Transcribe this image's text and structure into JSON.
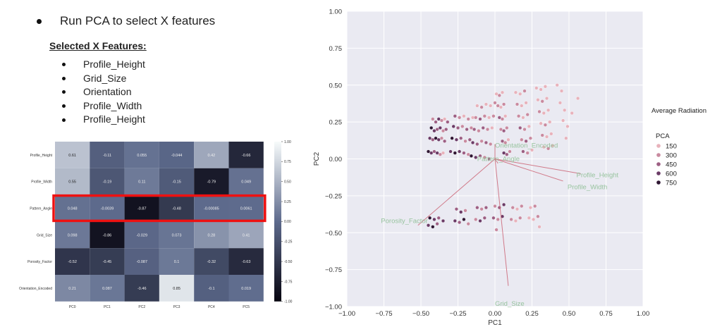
{
  "slide": {
    "main_bullet": "Run PCA to select X features",
    "selected_title": "Selected X Features:",
    "features": [
      "Profile_Height",
      "Grid_Size",
      "Orientation",
      "Profile_Width",
      "Profile_Height"
    ]
  },
  "chart_data": [
    {
      "type": "heatmap",
      "rows": [
        "Profile_Height",
        "Profile_Width",
        "Pattern_Angle",
        "Grid_Size",
        "Porosity_Factor",
        "Orientation_Encoded"
      ],
      "columns": [
        "PC0",
        "PC1",
        "PC2",
        "PC3",
        "PC4",
        "PC5"
      ],
      "values": [
        [
          0.61,
          -0.11,
          0.055,
          -0.044,
          0.42,
          -0.66
        ],
        [
          0.55,
          -0.19,
          0.11,
          -0.15,
          -0.79,
          0.049
        ],
        [
          0.048,
          -0.0039,
          -0.87,
          -0.48,
          -0.00085,
          0.0061
        ],
        [
          0.098,
          -0.86,
          -0.029,
          0.073,
          0.28,
          0.41
        ],
        [
          -0.52,
          -0.45,
          -0.087,
          0.1,
          -0.32,
          -0.63
        ],
        [
          0.21,
          0.087,
          -0.46,
          0.85,
          -0.1,
          0.019
        ]
      ],
      "labels": [
        [
          "0.61",
          "-0.11",
          "0.055",
          "-0.044",
          "0.42",
          "-0.66"
        ],
        [
          "0.55",
          "-0.19",
          "0.11",
          "-0.15",
          "-0.79",
          "0.049"
        ],
        [
          "0.048",
          "-0.0039",
          "-0.87",
          "-0.48",
          "-0.00085",
          "0.0061"
        ],
        [
          "0.098",
          "-0.86",
          "-0.029",
          "0.073",
          "0.28",
          "0.41"
        ],
        [
          "-0.52",
          "-0.45",
          "-0.087",
          "0.1",
          "-0.32",
          "-0.63"
        ],
        [
          "0.21",
          "0.087",
          "-0.46",
          "0.85",
          "-0.1",
          "0.019"
        ]
      ],
      "highlighted_row": "Pattern_Angle",
      "highlight_color": "#ee1111",
      "colorbar_ticks": [
        "1.00",
        "0.75",
        "0.50",
        "0.25",
        "0.00",
        "-0.25",
        "-0.50",
        "-0.75",
        "-1.00"
      ],
      "vmin": -1,
      "vmax": 1,
      "colormap_high": "#f7fbfb",
      "colormap_mid": "#5d6a8c",
      "colormap_low": "#070510"
    },
    {
      "type": "scatter",
      "xlabel": "PC1",
      "ylabel": "PC2",
      "xlim": [
        -1.0,
        1.0
      ],
      "ylim": [
        -1.0,
        1.0
      ],
      "xticks": [
        "-1.00",
        "-0.75",
        "-0.50",
        "-0.25",
        "0.00",
        "0.25",
        "0.50",
        "0.75",
        "1.00"
      ],
      "yticks": [
        "-1.00",
        "-0.75",
        "-0.50",
        "-0.25",
        "0.00",
        "0.25",
        "0.50",
        "0.75",
        "1.00"
      ],
      "grid": true,
      "background": "#eaeaf2",
      "points": [
        [
          -0.42,
          0.27,
          300
        ],
        [
          -0.4,
          0.25,
          450
        ],
        [
          -0.38,
          0.27,
          600
        ],
        [
          -0.36,
          0.26,
          300
        ],
        [
          -0.34,
          0.27,
          150
        ],
        [
          -0.32,
          0.25,
          450
        ],
        [
          -0.43,
          0.21,
          750
        ],
        [
          -0.41,
          0.19,
          600
        ],
        [
          -0.39,
          0.2,
          450
        ],
        [
          -0.37,
          0.21,
          600
        ],
        [
          -0.35,
          0.19,
          300
        ],
        [
          -0.33,
          0.2,
          450
        ],
        [
          -0.44,
          0.14,
          600
        ],
        [
          -0.42,
          0.13,
          450
        ],
        [
          -0.4,
          0.14,
          750
        ],
        [
          -0.38,
          0.13,
          600
        ],
        [
          -0.36,
          0.14,
          300
        ],
        [
          -0.34,
          0.12,
          450
        ],
        [
          -0.45,
          0.05,
          750
        ],
        [
          -0.43,
          0.04,
          600
        ],
        [
          -0.41,
          0.05,
          450
        ],
        [
          -0.39,
          0.04,
          600
        ],
        [
          -0.37,
          0.03,
          300
        ],
        [
          -0.35,
          0.04,
          150
        ],
        [
          -0.27,
          0.29,
          450
        ],
        [
          -0.24,
          0.28,
          300
        ],
        [
          -0.21,
          0.29,
          150
        ],
        [
          -0.18,
          0.27,
          300
        ],
        [
          -0.15,
          0.28,
          150
        ],
        [
          -0.28,
          0.22,
          600
        ],
        [
          -0.25,
          0.21,
          450
        ],
        [
          -0.22,
          0.22,
          300
        ],
        [
          -0.19,
          0.2,
          450
        ],
        [
          -0.16,
          0.21,
          300
        ],
        [
          -0.29,
          0.14,
          750
        ],
        [
          -0.26,
          0.13,
          600
        ],
        [
          -0.23,
          0.14,
          450
        ],
        [
          -0.2,
          0.12,
          300
        ],
        [
          -0.17,
          0.13,
          450
        ],
        [
          -0.3,
          0.05,
          600
        ],
        [
          -0.27,
          0.04,
          750
        ],
        [
          -0.24,
          0.05,
          600
        ],
        [
          -0.21,
          0.04,
          450
        ],
        [
          -0.18,
          0.03,
          300
        ],
        [
          -0.12,
          0.36,
          150
        ],
        [
          -0.09,
          0.35,
          300
        ],
        [
          -0.06,
          0.37,
          150
        ],
        [
          -0.03,
          0.36,
          150
        ],
        [
          0.0,
          0.38,
          300
        ],
        [
          -0.13,
          0.28,
          300
        ],
        [
          -0.1,
          0.27,
          450
        ],
        [
          -0.07,
          0.29,
          300
        ],
        [
          -0.04,
          0.28,
          150
        ],
        [
          -0.01,
          0.29,
          300
        ],
        [
          -0.14,
          0.2,
          450
        ],
        [
          -0.11,
          0.19,
          300
        ],
        [
          -0.08,
          0.21,
          450
        ],
        [
          -0.05,
          0.2,
          300
        ],
        [
          -0.02,
          0.21,
          150
        ],
        [
          -0.15,
          0.11,
          600
        ],
        [
          -0.12,
          0.1,
          450
        ],
        [
          -0.09,
          0.12,
          300
        ],
        [
          -0.06,
          0.11,
          450
        ],
        [
          -0.03,
          0.1,
          300
        ],
        [
          -0.16,
          0.02,
          750
        ],
        [
          -0.13,
          0.01,
          600
        ],
        [
          -0.1,
          0.02,
          450
        ],
        [
          -0.07,
          0.01,
          300
        ],
        [
          -0.04,
          0.0,
          450
        ],
        [
          0.01,
          0.44,
          150
        ],
        [
          0.03,
          0.43,
          300
        ],
        [
          0.05,
          0.45,
          150
        ],
        [
          0.02,
          0.36,
          300
        ],
        [
          0.04,
          0.35,
          150
        ],
        [
          0.06,
          0.37,
          300
        ],
        [
          0.03,
          0.28,
          450
        ],
        [
          0.05,
          0.27,
          300
        ],
        [
          0.07,
          0.29,
          150
        ],
        [
          0.04,
          0.2,
          300
        ],
        [
          0.06,
          0.19,
          450
        ],
        [
          0.08,
          0.21,
          300
        ],
        [
          0.05,
          0.12,
          450
        ],
        [
          0.07,
          0.11,
          300
        ],
        [
          0.09,
          0.13,
          150
        ],
        [
          0.06,
          0.04,
          600
        ],
        [
          0.08,
          0.03,
          450
        ],
        [
          0.1,
          0.05,
          300
        ],
        [
          0.14,
          0.45,
          150
        ],
        [
          0.17,
          0.44,
          150
        ],
        [
          0.2,
          0.46,
          300
        ],
        [
          0.15,
          0.37,
          300
        ],
        [
          0.18,
          0.36,
          150
        ],
        [
          0.21,
          0.38,
          150
        ],
        [
          0.16,
          0.29,
          300
        ],
        [
          0.19,
          0.28,
          150
        ],
        [
          0.22,
          0.3,
          300
        ],
        [
          0.17,
          0.21,
          450
        ],
        [
          0.2,
          0.2,
          300
        ],
        [
          0.23,
          0.22,
          150
        ],
        [
          0.18,
          0.13,
          300
        ],
        [
          0.21,
          0.12,
          450
        ],
        [
          0.24,
          0.14,
          300
        ],
        [
          0.19,
          0.05,
          450
        ],
        [
          0.22,
          0.04,
          300
        ],
        [
          0.25,
          0.06,
          150
        ],
        [
          0.28,
          0.48,
          150
        ],
        [
          0.31,
          0.47,
          150
        ],
        [
          0.34,
          0.49,
          150
        ],
        [
          0.29,
          0.4,
          150
        ],
        [
          0.32,
          0.39,
          300
        ],
        [
          0.35,
          0.41,
          150
        ],
        [
          0.3,
          0.32,
          300
        ],
        [
          0.33,
          0.31,
          150
        ],
        [
          0.36,
          0.33,
          150
        ],
        [
          0.31,
          0.24,
          150
        ],
        [
          0.34,
          0.23,
          300
        ],
        [
          0.37,
          0.25,
          150
        ],
        [
          0.32,
          0.16,
          300
        ],
        [
          0.35,
          0.15,
          150
        ],
        [
          0.38,
          0.17,
          150
        ],
        [
          0.33,
          0.08,
          150
        ],
        [
          0.36,
          0.07,
          300
        ],
        [
          0.39,
          0.09,
          150
        ],
        [
          0.42,
          0.5,
          150
        ],
        [
          0.45,
          0.46,
          150
        ],
        [
          0.44,
          0.38,
          150
        ],
        [
          0.47,
          0.33,
          150
        ],
        [
          0.46,
          0.26,
          150
        ],
        [
          0.49,
          0.22,
          150
        ],
        [
          0.48,
          0.14,
          150
        ],
        [
          0.52,
          0.31,
          150
        ],
        [
          0.56,
          0.41,
          150
        ],
        [
          -0.44,
          -0.4,
          750
        ],
        [
          -0.41,
          -0.41,
          600
        ],
        [
          -0.38,
          -0.4,
          450
        ],
        [
          -0.35,
          -0.42,
          600
        ],
        [
          -0.45,
          -0.45,
          600
        ],
        [
          -0.42,
          -0.46,
          750
        ],
        [
          -0.39,
          -0.44,
          450
        ],
        [
          -0.26,
          -0.34,
          450
        ],
        [
          -0.23,
          -0.36,
          600
        ],
        [
          -0.2,
          -0.35,
          300
        ],
        [
          -0.27,
          -0.42,
          600
        ],
        [
          -0.24,
          -0.43,
          450
        ],
        [
          -0.21,
          -0.41,
          750
        ],
        [
          -0.18,
          -0.44,
          300
        ],
        [
          -0.12,
          -0.33,
          450
        ],
        [
          -0.09,
          -0.34,
          300
        ],
        [
          -0.06,
          -0.33,
          450
        ],
        [
          -0.13,
          -0.41,
          300
        ],
        [
          -0.1,
          -0.42,
          600
        ],
        [
          -0.07,
          -0.4,
          450
        ],
        [
          0.0,
          -0.32,
          300
        ],
        [
          0.03,
          -0.33,
          450
        ],
        [
          0.06,
          -0.31,
          600
        ],
        [
          -0.01,
          -0.4,
          450
        ],
        [
          0.02,
          -0.41,
          300
        ],
        [
          0.05,
          -0.39,
          600
        ],
        [
          0.01,
          -0.48,
          300
        ],
        [
          0.12,
          -0.33,
          300
        ],
        [
          0.15,
          -0.34,
          150
        ],
        [
          0.18,
          -0.32,
          300
        ],
        [
          0.11,
          -0.41,
          300
        ],
        [
          0.14,
          -0.42,
          150
        ],
        [
          0.17,
          -0.4,
          300
        ],
        [
          0.24,
          -0.33,
          150
        ],
        [
          0.27,
          -0.32,
          300
        ],
        [
          0.23,
          -0.4,
          150
        ],
        [
          0.26,
          -0.41,
          150
        ],
        [
          0.29,
          -0.39,
          300
        ],
        [
          0.3,
          -0.46,
          150
        ]
      ],
      "legend": {
        "title": "Average Radiation",
        "subtitle": "PCA",
        "entries": [
          {
            "label": "150",
            "color": "#e8b2bb"
          },
          {
            "label": "300",
            "color": "#c98a9f"
          },
          {
            "label": "450",
            "color": "#9d5f83"
          },
          {
            "label": "600",
            "color": "#6b3b66"
          },
          {
            "label": "750",
            "color": "#2f1632"
          }
        ]
      },
      "loadings": [
        {
          "label": "Orientation_Encoded",
          "x": 0.0,
          "y": 0.1
        },
        {
          "label": "Profile_Height",
          "x": 0.58,
          "y": -0.1
        },
        {
          "label": "Profile_Width",
          "x": 0.46,
          "y": -0.15
        },
        {
          "label": "Porosity_Factor",
          "x": -0.52,
          "y": -0.45
        },
        {
          "label": "Grid_Size",
          "x": 0.09,
          "y": -0.86
        },
        {
          "label": "Pattern_Angle",
          "x": 0.02,
          "y": -0.03
        }
      ],
      "loading_color": "#cc6677",
      "loading_label_color": "#97c39e"
    }
  ]
}
